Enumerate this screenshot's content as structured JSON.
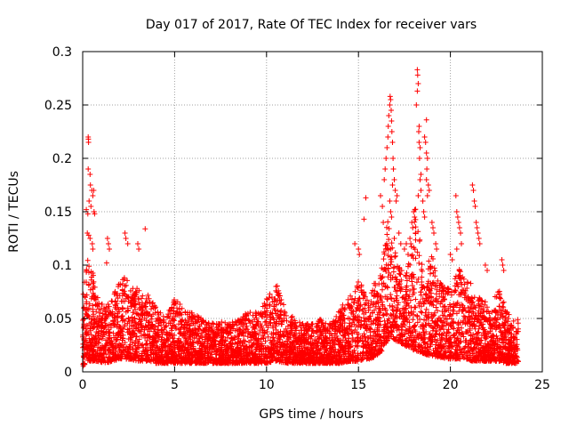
{
  "chart_data": {
    "type": "scatter",
    "title": "Day 017 of 2017, Rate Of TEC Index for receiver vars",
    "xlabel": "GPS time / hours",
    "ylabel": "ROTI / TECUs",
    "xlim": [
      0,
      25
    ],
    "ylim": [
      0,
      0.3
    ],
    "xticks": [
      "0",
      "5",
      "10",
      "15",
      "20",
      "25"
    ],
    "yticks": [
      "0",
      "0.05",
      "0.1",
      "0.15",
      "0.2",
      "0.25",
      "0.3"
    ],
    "grid": true,
    "marker": "+",
    "color": "#ff0000",
    "envelope": {
      "x": [
        0,
        0.3,
        0.5,
        0.8,
        1.2,
        1.6,
        2.0,
        2.3,
        2.6,
        3.0,
        3.3,
        3.6,
        4.0,
        4.5,
        5.0,
        5.5,
        6.0,
        6.5,
        7.0,
        7.5,
        8.0,
        8.5,
        9.0,
        9.5,
        10.0,
        10.5,
        11.0,
        11.5,
        12.0,
        12.5,
        13.0,
        13.5,
        14.0,
        14.5,
        15.0,
        15.3,
        15.6,
        16.0,
        16.3,
        16.6,
        16.9,
        17.2,
        17.5,
        17.8,
        18.1,
        18.4,
        18.7,
        19.0,
        19.3,
        19.6,
        20.0,
        20.3,
        20.6,
        20.9,
        21.2,
        21.5,
        21.8,
        22.1,
        22.4,
        22.7,
        23.0,
        23.3,
        23.7
      ],
      "peak": [
        0.07,
        0.12,
        0.1,
        0.07,
        0.06,
        0.07,
        0.09,
        0.09,
        0.085,
        0.08,
        0.07,
        0.075,
        0.06,
        0.05,
        0.07,
        0.06,
        0.055,
        0.05,
        0.045,
        0.05,
        0.045,
        0.05,
        0.06,
        0.055,
        0.07,
        0.085,
        0.06,
        0.05,
        0.045,
        0.045,
        0.05,
        0.045,
        0.06,
        0.07,
        0.085,
        0.08,
        0.07,
        0.09,
        0.1,
        0.15,
        0.12,
        0.1,
        0.09,
        0.11,
        0.16,
        0.12,
        0.1,
        0.11,
        0.09,
        0.08,
        0.08,
        0.09,
        0.1,
        0.09,
        0.08,
        0.07,
        0.07,
        0.06,
        0.07,
        0.08,
        0.06,
        0.05,
        0.05
      ],
      "base": [
        0.005,
        0.01,
        0.01,
        0.01,
        0.008,
        0.01,
        0.012,
        0.012,
        0.012,
        0.01,
        0.01,
        0.01,
        0.008,
        0.008,
        0.008,
        0.008,
        0.008,
        0.008,
        0.008,
        0.008,
        0.008,
        0.008,
        0.008,
        0.008,
        0.008,
        0.01,
        0.008,
        0.008,
        0.008,
        0.008,
        0.008,
        0.008,
        0.008,
        0.01,
        0.01,
        0.012,
        0.012,
        0.015,
        0.02,
        0.03,
        0.03,
        0.028,
        0.025,
        0.022,
        0.02,
        0.018,
        0.016,
        0.015,
        0.014,
        0.013,
        0.012,
        0.012,
        0.012,
        0.012,
        0.01,
        0.01,
        0.01,
        0.01,
        0.01,
        0.01,
        0.008,
        0.008,
        0.008
      ]
    },
    "outliers": [
      [
        0.3,
        0.22
      ],
      [
        0.31,
        0.218
      ],
      [
        0.32,
        0.215
      ],
      [
        0.3,
        0.19
      ],
      [
        0.4,
        0.185
      ],
      [
        0.42,
        0.175
      ],
      [
        0.5,
        0.17
      ],
      [
        0.55,
        0.165
      ],
      [
        0.6,
        0.17
      ],
      [
        0.35,
        0.16
      ],
      [
        0.45,
        0.155
      ],
      [
        0.62,
        0.15
      ],
      [
        0.65,
        0.148
      ],
      [
        0.2,
        0.152
      ],
      [
        0.28,
        0.148
      ],
      [
        0.25,
        0.13
      ],
      [
        0.33,
        0.128
      ],
      [
        0.4,
        0.125
      ],
      [
        0.52,
        0.12
      ],
      [
        0.55,
        0.115
      ],
      [
        1.35,
        0.125
      ],
      [
        1.4,
        0.12
      ],
      [
        1.45,
        0.115
      ],
      [
        2.3,
        0.13
      ],
      [
        2.35,
        0.125
      ],
      [
        2.45,
        0.12
      ],
      [
        3.4,
        0.134
      ],
      [
        3.0,
        0.12
      ],
      [
        3.05,
        0.115
      ],
      [
        1.3,
        0.102
      ],
      [
        15.3,
        0.143
      ],
      [
        15.4,
        0.163
      ],
      [
        14.8,
        0.12
      ],
      [
        15.0,
        0.115
      ],
      [
        15.05,
        0.11
      ],
      [
        16.4,
        0.18
      ],
      [
        16.45,
        0.19
      ],
      [
        16.5,
        0.2
      ],
      [
        16.55,
        0.21
      ],
      [
        16.6,
        0.22
      ],
      [
        16.62,
        0.23
      ],
      [
        16.65,
        0.24
      ],
      [
        16.7,
        0.25
      ],
      [
        16.72,
        0.258
      ],
      [
        16.75,
        0.255
      ],
      [
        16.78,
        0.245
      ],
      [
        16.8,
        0.235
      ],
      [
        16.82,
        0.225
      ],
      [
        16.85,
        0.215
      ],
      [
        16.88,
        0.2
      ],
      [
        16.9,
        0.19
      ],
      [
        16.95,
        0.18
      ],
      [
        17.0,
        0.17
      ],
      [
        16.7,
        0.16
      ],
      [
        16.75,
        0.15
      ],
      [
        16.8,
        0.145
      ],
      [
        17.05,
        0.16
      ],
      [
        17.1,
        0.165
      ],
      [
        16.85,
        0.175
      ],
      [
        18.2,
        0.283
      ],
      [
        18.22,
        0.278
      ],
      [
        18.25,
        0.27
      ],
      [
        18.2,
        0.263
      ],
      [
        18.15,
        0.25
      ],
      [
        18.3,
        0.23
      ],
      [
        18.28,
        0.225
      ],
      [
        18.3,
        0.215
      ],
      [
        18.35,
        0.21
      ],
      [
        18.32,
        0.2
      ],
      [
        18.4,
        0.185
      ],
      [
        18.35,
        0.18
      ],
      [
        18.4,
        0.17
      ],
      [
        18.25,
        0.165
      ],
      [
        18.5,
        0.16
      ],
      [
        18.6,
        0.22
      ],
      [
        18.65,
        0.215
      ],
      [
        18.7,
        0.205
      ],
      [
        18.75,
        0.2
      ],
      [
        18.72,
        0.19
      ],
      [
        18.7,
        0.18
      ],
      [
        18.8,
        0.175
      ],
      [
        18.85,
        0.17
      ],
      [
        18.75,
        0.165
      ],
      [
        18.7,
        0.236
      ],
      [
        18.55,
        0.15
      ],
      [
        18.6,
        0.145
      ],
      [
        18.0,
        0.15
      ],
      [
        18.05,
        0.145
      ],
      [
        17.9,
        0.14
      ],
      [
        17.95,
        0.135
      ],
      [
        18.1,
        0.13
      ],
      [
        17.8,
        0.125
      ],
      [
        17.85,
        0.12
      ],
      [
        19.0,
        0.14
      ],
      [
        19.05,
        0.135
      ],
      [
        19.1,
        0.13
      ],
      [
        19.2,
        0.12
      ],
      [
        19.25,
        0.115
      ],
      [
        20.3,
        0.165
      ],
      [
        20.35,
        0.15
      ],
      [
        20.4,
        0.145
      ],
      [
        20.45,
        0.14
      ],
      [
        20.5,
        0.135
      ],
      [
        20.55,
        0.13
      ],
      [
        20.6,
        0.12
      ],
      [
        20.35,
        0.115
      ],
      [
        21.2,
        0.175
      ],
      [
        21.25,
        0.17
      ],
      [
        21.3,
        0.16
      ],
      [
        21.35,
        0.155
      ],
      [
        21.4,
        0.14
      ],
      [
        21.45,
        0.135
      ],
      [
        21.5,
        0.13
      ],
      [
        21.55,
        0.125
      ],
      [
        21.6,
        0.12
      ],
      [
        20.0,
        0.11
      ],
      [
        20.1,
        0.105
      ],
      [
        22.8,
        0.105
      ],
      [
        22.85,
        0.1
      ],
      [
        22.9,
        0.095
      ],
      [
        21.9,
        0.1
      ],
      [
        22.0,
        0.095
      ],
      [
        16.2,
        0.165
      ],
      [
        16.3,
        0.155
      ],
      [
        16.35,
        0.14
      ],
      [
        16.95,
        0.125
      ],
      [
        17.2,
        0.13
      ],
      [
        17.3,
        0.12
      ],
      [
        17.5,
        0.115
      ],
      [
        17.6,
        0.12
      ],
      [
        17.7,
        0.11
      ]
    ]
  }
}
